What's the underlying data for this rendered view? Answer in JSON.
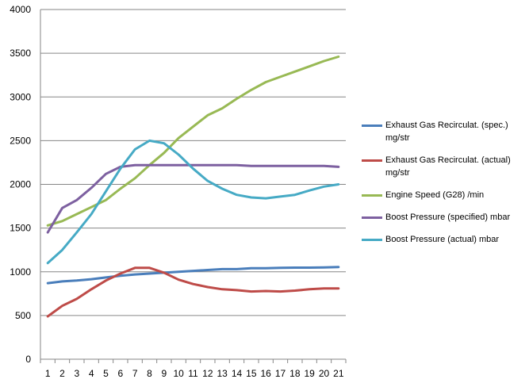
{
  "chart_data": {
    "type": "line",
    "title": "",
    "xlabel": "",
    "ylabel": "",
    "categories": [
      "1",
      "2",
      "3",
      "4",
      "5",
      "6",
      "7",
      "8",
      "9",
      "10",
      "11",
      "12",
      "13",
      "14",
      "15",
      "16",
      "17",
      "18",
      "19",
      "20",
      "21"
    ],
    "ylim": [
      0,
      4000
    ],
    "yticks": [
      0,
      500,
      1000,
      1500,
      2000,
      2500,
      3000,
      3500,
      4000
    ],
    "grid": "horizontal",
    "legend_position": "right",
    "series": [
      {
        "name": "Exhaust Gas Recirculat. (spec.) mg/str",
        "color": "#4a7ebb",
        "values": [
          870,
          890,
          900,
          915,
          935,
          955,
          970,
          980,
          990,
          1000,
          1010,
          1020,
          1030,
          1030,
          1040,
          1040,
          1045,
          1048,
          1048,
          1050,
          1055
        ]
      },
      {
        "name": "Exhaust Gas Recirculat. (actual) mg/str",
        "color": "#be4b48",
        "values": [
          490,
          610,
          690,
          800,
          900,
          980,
          1045,
          1045,
          990,
          910,
          860,
          825,
          800,
          790,
          775,
          780,
          775,
          785,
          800,
          810,
          810
        ]
      },
      {
        "name": "Engine Speed (G28)  /min",
        "color": "#98b954",
        "values": [
          1530,
          1580,
          1660,
          1740,
          1820,
          1950,
          2070,
          2220,
          2360,
          2530,
          2660,
          2790,
          2870,
          2980,
          3080,
          3170,
          3230,
          3290,
          3350,
          3410,
          3460
        ]
      },
      {
        "name": "Boost Pressure (specified)  mbar",
        "color": "#7d60a0",
        "values": [
          1450,
          1730,
          1820,
          1960,
          2120,
          2200,
          2220,
          2220,
          2220,
          2220,
          2220,
          2220,
          2220,
          2220,
          2210,
          2210,
          2210,
          2210,
          2210,
          2210,
          2200
        ]
      },
      {
        "name": "Boost Pressure (actual)  mbar",
        "color": "#46aac5",
        "values": [
          1100,
          1250,
          1450,
          1660,
          1920,
          2180,
          2400,
          2500,
          2470,
          2340,
          2180,
          2040,
          1950,
          1880,
          1850,
          1840,
          1860,
          1880,
          1930,
          1975,
          2000
        ]
      }
    ]
  }
}
